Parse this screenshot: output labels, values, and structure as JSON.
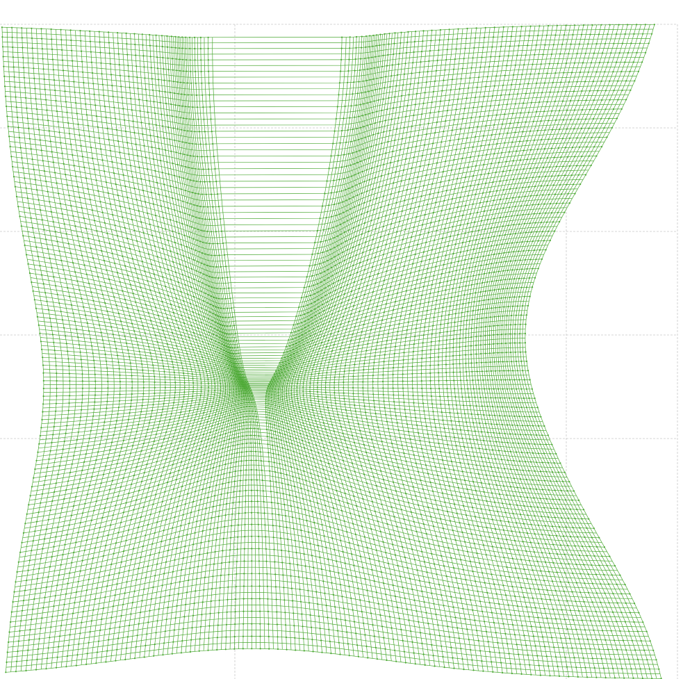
{
  "chart_data": {
    "type": "line",
    "description_free": true,
    "series_color": "#4aa832",
    "grid_color": "#c8c8c8",
    "grid": true,
    "grid_style": "dashed",
    "mesh": {
      "rows": 140,
      "cols": 140,
      "marker": "dot"
    },
    "legend": "none"
  }
}
